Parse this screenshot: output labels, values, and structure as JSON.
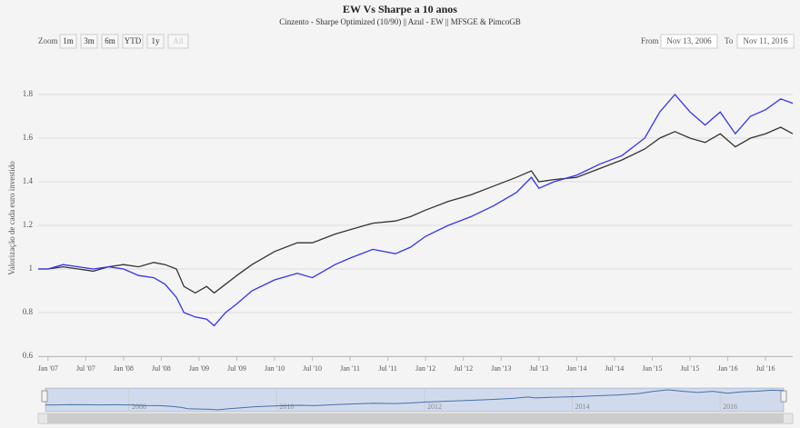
{
  "chart_data": {
    "type": "line",
    "title": "EW Vs Sharpe a 10 anos",
    "subtitle": "Cinzento - Sharpe Optimized (10/90) || Azul - EW || MFSGE & PimcoGB",
    "y_label": "Valorização de cada euro investido",
    "zoom_label": "Zoom",
    "zoom_buttons": [
      "1m",
      "3m",
      "6m",
      "YTD",
      "1y",
      "All"
    ],
    "from_label": "From",
    "from_date": "Nov 13, 2006",
    "to_label": "To",
    "to_date": "Nov 11, 2016",
    "x": [
      2006.87,
      2007.0,
      2007.2,
      2007.4,
      2007.6,
      2007.8,
      2008.0,
      2008.2,
      2008.4,
      2008.55,
      2008.7,
      2008.8,
      2008.95,
      2009.1,
      2009.2,
      2009.35,
      2009.5,
      2009.7,
      2010.0,
      2010.3,
      2010.5,
      2010.8,
      2011.0,
      2011.3,
      2011.6,
      2011.8,
      2012.0,
      2012.3,
      2012.6,
      2012.9,
      2013.2,
      2013.4,
      2013.5,
      2013.7,
      2014.0,
      2014.3,
      2014.6,
      2014.9,
      2015.1,
      2015.3,
      2015.5,
      2015.7,
      2015.9,
      2016.1,
      2016.3,
      2016.5,
      2016.7,
      2016.86
    ],
    "series": [
      {
        "color": "#333333",
        "values": [
          1.0,
          1.0,
          1.01,
          1.0,
          0.99,
          1.01,
          1.02,
          1.01,
          1.03,
          1.02,
          1.0,
          0.92,
          0.89,
          0.92,
          0.89,
          0.93,
          0.97,
          1.02,
          1.08,
          1.12,
          1.12,
          1.16,
          1.18,
          1.21,
          1.22,
          1.24,
          1.27,
          1.31,
          1.34,
          1.38,
          1.42,
          1.45,
          1.4,
          1.41,
          1.42,
          1.46,
          1.5,
          1.55,
          1.6,
          1.63,
          1.6,
          1.58,
          1.62,
          1.56,
          1.6,
          1.62,
          1.65,
          1.62
        ]
      },
      {
        "color": "#3333ee",
        "values": [
          1.0,
          1.0,
          1.02,
          1.01,
          1.0,
          1.01,
          1.0,
          0.97,
          0.96,
          0.93,
          0.87,
          0.8,
          0.78,
          0.77,
          0.74,
          0.8,
          0.84,
          0.9,
          0.95,
          0.98,
          0.96,
          1.02,
          1.05,
          1.09,
          1.07,
          1.1,
          1.15,
          1.2,
          1.24,
          1.29,
          1.35,
          1.42,
          1.37,
          1.4,
          1.43,
          1.48,
          1.52,
          1.6,
          1.72,
          1.8,
          1.72,
          1.66,
          1.72,
          1.62,
          1.7,
          1.73,
          1.78,
          1.76
        ]
      }
    ],
    "xlim": [
      2006.87,
      2016.86
    ],
    "xticks": [
      {
        "value": 2007.0,
        "label": "Jan '07"
      },
      {
        "value": 2007.5,
        "label": "Jul '07"
      },
      {
        "value": 2008.0,
        "label": "Jan '08"
      },
      {
        "value": 2008.5,
        "label": "Jul '08"
      },
      {
        "value": 2009.0,
        "label": "Jan '09"
      },
      {
        "value": 2009.5,
        "label": "Jul '09"
      },
      {
        "value": 2010.0,
        "label": "Jan '10"
      },
      {
        "value": 2010.5,
        "label": "Jul '10"
      },
      {
        "value": 2011.0,
        "label": "Jan '11"
      },
      {
        "value": 2011.5,
        "label": "Jul '11"
      },
      {
        "value": 2012.0,
        "label": "Jan '12"
      },
      {
        "value": 2012.5,
        "label": "Jul '12"
      },
      {
        "value": 2013.0,
        "label": "Jan '13"
      },
      {
        "value": 2013.5,
        "label": "Jul '13"
      },
      {
        "value": 2014.0,
        "label": "Jan '14"
      },
      {
        "value": 2014.5,
        "label": "Jul '14"
      },
      {
        "value": 2015.0,
        "label": "Jan '15"
      },
      {
        "value": 2015.5,
        "label": "Jul '15"
      },
      {
        "value": 2016.0,
        "label": "Jan '16"
      },
      {
        "value": 2016.5,
        "label": "Jul '16"
      }
    ],
    "ylim": [
      0.6,
      1.9
    ],
    "yticks": [
      {
        "value": 0.6,
        "label": "0.6"
      },
      {
        "value": 0.8,
        "label": "0.8"
      },
      1,
      {
        "value": 1.2,
        "label": "1.2"
      },
      {
        "value": 1.4,
        "label": "1.4"
      },
      {
        "value": 1.6,
        "label": "1.6"
      },
      {
        "value": 1.8,
        "label": "1.8"
      }
    ],
    "navigator_xticks": [
      2008,
      2010,
      2012,
      2014,
      2016
    ],
    "grid": true
  }
}
